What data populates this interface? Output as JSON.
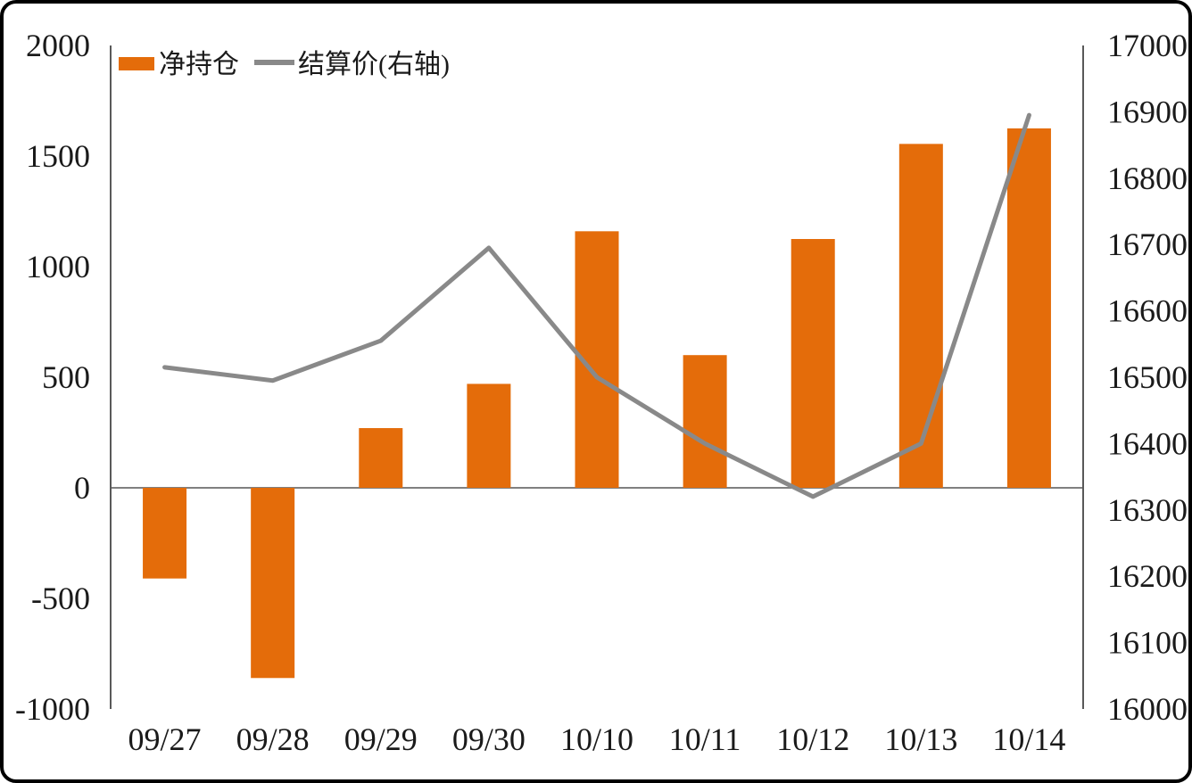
{
  "chart_data": {
    "type": "bar",
    "subtype": "bar-line-combo",
    "title": "",
    "categories": [
      "09/27",
      "09/28",
      "09/29",
      "09/30",
      "10/10",
      "10/11",
      "10/12",
      "10/13",
      "10/14"
    ],
    "series": [
      {
        "name": "净持仓",
        "type": "bar",
        "axis": "left",
        "color": "#e46c0a",
        "values": [
          -410,
          -860,
          270,
          470,
          1160,
          600,
          1125,
          1555,
          1625
        ]
      },
      {
        "name": "结算价(右轴)",
        "type": "line",
        "axis": "right",
        "color": "#898989",
        "values": [
          16515,
          16495,
          16555,
          16695,
          16500,
          16400,
          16320,
          16400,
          16895
        ]
      }
    ],
    "left_axis": {
      "min": -1000,
      "max": 2000,
      "step": 500,
      "tick_labels": [
        "2000",
        "1500",
        "1000",
        "500",
        "0",
        "-500",
        "-1000"
      ]
    },
    "right_axis": {
      "min": 16000,
      "max": 17000,
      "step": 100,
      "tick_labels": [
        "17000",
        "16900",
        "16800",
        "16700",
        "16600",
        "16500",
        "16400",
        "16300",
        "16200",
        "16100",
        "16000"
      ]
    },
    "legend": {
      "position": "top-left",
      "entries": [
        {
          "label": "净持仓",
          "swatch": "bar",
          "color": "#e46c0a"
        },
        {
          "label": "结算价(右轴)",
          "swatch": "line",
          "color": "#898989"
        }
      ]
    },
    "grid": "zero-line-only",
    "colors": {
      "bar": "#e46c0a",
      "line": "#898989",
      "axis_line": "#595959",
      "zero_line": "#808080",
      "text": "#1a1a1a",
      "background": "#ffffff",
      "frame_border": "#000000"
    }
  }
}
